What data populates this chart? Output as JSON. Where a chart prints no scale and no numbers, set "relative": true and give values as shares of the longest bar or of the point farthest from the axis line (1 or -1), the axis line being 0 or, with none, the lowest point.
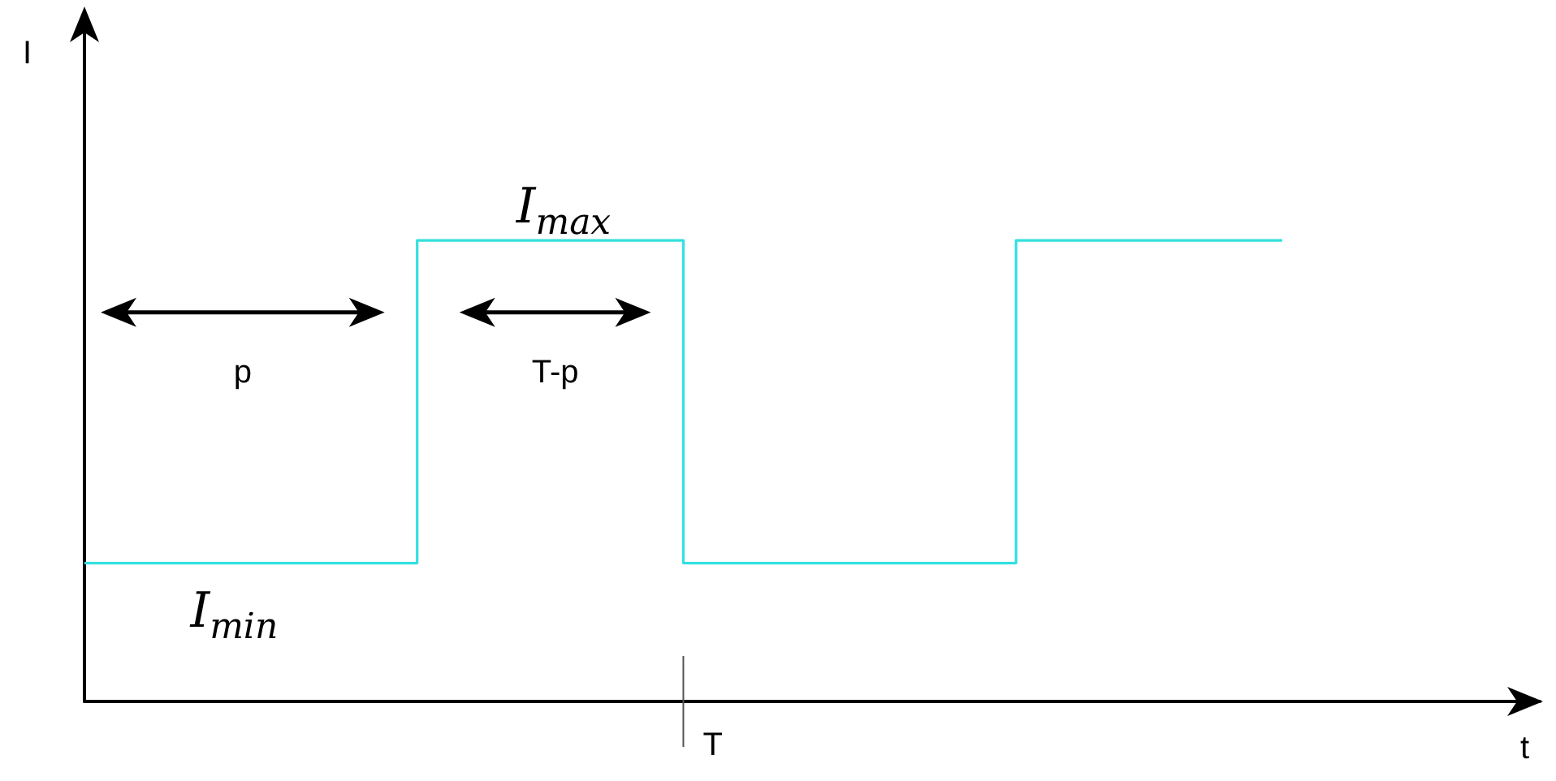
{
  "chart_data": {
    "type": "step",
    "relative": true,
    "categories": [
      null,
      null,
      null,
      null,
      null,
      null,
      null,
      null,
      null,
      null,
      null,
      null,
      null,
      null,
      null,
      null,
      null,
      null,
      null
    ],
    "series": [
      {
        "color": "#33e0e0",
        "values": [
          0.3,
          0.3,
          0.3,
          0.3,
          0.3,
          1,
          1,
          1,
          1,
          0.3,
          0.3,
          0.3,
          0.3,
          0.3,
          1,
          1,
          1,
          1,
          1
        ]
      }
    ],
    "grid": false,
    "marker": "none",
    "line_style": "solid",
    "annotations": [
      "p",
      "T-p",
      "I$_{max}$",
      "I$_{min}$",
      "T",
      "I",
      "t"
    ]
  }
}
